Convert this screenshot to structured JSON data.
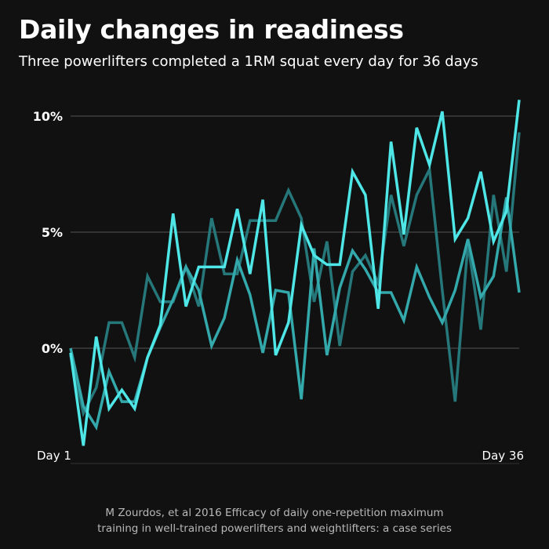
{
  "title": "Daily changes in readiness",
  "subtitle": "Three powerlifters completed a 1RM squat every day for 36 days",
  "source": {
    "line1": "M Zourdos, et al 2016 Efficacy of daily one-repetition maximum",
    "line2": "training in well-trained powerlifters and weightlifters: a case series"
  },
  "colors": {
    "background": "#111111",
    "grid": "#555555",
    "text": "#ffffff",
    "series": [
      "#4ee6e6",
      "#34a9ac",
      "#26777a"
    ]
  },
  "chart_data": {
    "type": "line",
    "x": [
      1,
      2,
      3,
      4,
      5,
      6,
      7,
      8,
      9,
      10,
      11,
      12,
      13,
      14,
      15,
      16,
      17,
      18,
      19,
      20,
      21,
      22,
      23,
      24,
      25,
      26,
      27,
      28,
      29,
      30,
      31,
      32,
      33,
      34,
      35,
      36
    ],
    "x_tick_labels": [
      {
        "x": 1,
        "label": "Day 1"
      },
      {
        "x": 36,
        "label": "Day 36"
      }
    ],
    "y_ticks": [
      {
        "value": 0,
        "label": "0%"
      },
      {
        "value": 5,
        "label": "5%"
      },
      {
        "value": 10,
        "label": "10%"
      }
    ],
    "xlim": [
      1,
      36
    ],
    "ylim": [
      -5,
      10
    ],
    "grid": "horizontal",
    "legend": "none",
    "series": [
      {
        "values": [
          -0.2,
          -4.2,
          0.5,
          -2.6,
          -1.8,
          -2.6,
          -0.4,
          1.0,
          5.8,
          1.8,
          3.5,
          3.5,
          3.5,
          6.0,
          3.2,
          6.4,
          -0.3,
          1.1,
          5.3,
          4.0,
          3.6,
          3.6,
          7.6,
          6.6,
          1.7,
          8.9,
          4.9,
          9.5,
          7.9,
          10.2,
          4.7,
          5.6,
          7.6,
          4.6,
          5.9,
          10.7
        ]
      },
      {
        "values": [
          0.0,
          -2.5,
          -3.4,
          -1.0,
          -2.3,
          -2.3,
          -0.4,
          0.9,
          2.1,
          3.5,
          2.5,
          0.1,
          1.3,
          3.8,
          2.3,
          -0.2,
          2.5,
          2.4,
          -2.2,
          4.3,
          -0.3,
          2.6,
          4.2,
          3.4,
          2.4,
          2.4,
          1.2,
          3.5,
          2.2,
          1.1,
          2.5,
          4.7,
          2.2,
          3.1,
          6.5,
          2.4
        ]
      },
      {
        "values": [
          -0.3,
          -2.8,
          -1.7,
          1.1,
          1.1,
          -0.4,
          3.1,
          2.0,
          2.0,
          3.5,
          1.8,
          5.6,
          3.2,
          3.2,
          5.5,
          5.5,
          5.5,
          6.8,
          5.6,
          2.0,
          4.6,
          0.1,
          3.3,
          4.0,
          2.8,
          6.6,
          4.4,
          6.6,
          7.7,
          2.5,
          -2.3,
          4.5,
          0.8,
          6.6,
          3.3,
          9.3
        ]
      }
    ]
  }
}
